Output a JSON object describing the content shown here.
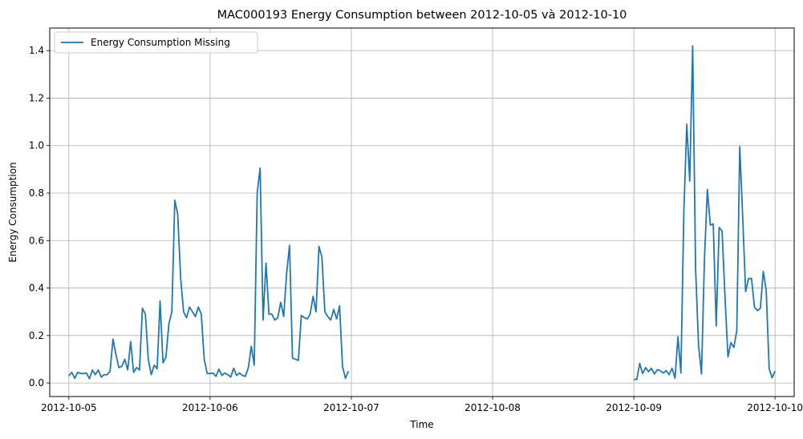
{
  "chart_data": {
    "type": "line",
    "title": "MAC000193 Energy Consumption between 2012-10-05 và 2012-10-10",
    "xlabel": "Time",
    "ylabel": "Energy Consumption",
    "xlim": [
      "2012-10-04 20:45",
      "2012-10-10 03:15"
    ],
    "ylim": [
      -0.057,
      1.495
    ],
    "grid": true,
    "legend": "top-left",
    "x_ticks": [
      "2012-10-05",
      "2012-10-06",
      "2012-10-07",
      "2012-10-08",
      "2012-10-09",
      "2012-10-10"
    ],
    "y_ticks": [
      "0.0",
      "0.2",
      "0.4",
      "0.6",
      "0.8",
      "1.0",
      "1.2",
      "1.4"
    ],
    "y_tick_values": [
      0.0,
      0.2,
      0.4,
      0.6,
      0.8,
      1.0,
      1.2,
      1.4
    ],
    "series": [
      {
        "name": "Energy Consumption Missing",
        "color": "#1f77b4",
        "segments": [
          {
            "start": "2012-10-05 00:00",
            "interval_minutes": 30,
            "values": [
              0.03,
              0.045,
              0.02,
              0.045,
              0.04,
              0.04,
              0.042,
              0.018,
              0.055,
              0.035,
              0.055,
              0.025,
              0.035,
              0.035,
              0.05,
              0.185,
              0.12,
              0.065,
              0.07,
              0.1,
              0.055,
              0.175,
              0.045,
              0.065,
              0.055,
              0.315,
              0.29,
              0.1,
              0.035,
              0.075,
              0.06,
              0.345,
              0.085,
              0.11,
              0.25,
              0.3,
              0.77,
              0.71,
              0.44,
              0.3,
              0.275,
              0.32,
              0.3,
              0.28,
              0.32,
              0.29,
              0.1,
              0.04,
              0.04,
              0.042,
              0.028,
              0.058,
              0.032,
              0.042,
              0.035,
              0.025,
              0.062,
              0.032,
              0.042,
              0.032,
              0.028,
              0.065,
              0.155,
              0.075,
              0.8,
              0.905,
              0.265,
              0.505,
              0.29,
              0.29,
              0.265,
              0.275,
              0.34,
              0.28,
              0.46,
              0.58,
              0.105,
              0.1,
              0.095,
              0.285,
              0.275,
              0.27,
              0.29,
              0.365,
              0.3,
              0.575,
              0.53,
              0.3,
              0.28,
              0.265,
              0.31,
              0.27,
              0.325,
              0.07,
              0.02,
              0.05
            ]
          },
          {
            "start": "2012-10-09 00:00",
            "interval_minutes": 30,
            "values": [
              0.015,
              0.015,
              0.082,
              0.04,
              0.065,
              0.048,
              0.062,
              0.038,
              0.056,
              0.052,
              0.042,
              0.052,
              0.035,
              0.062,
              0.02,
              0.195,
              0.042,
              0.72,
              1.09,
              0.85,
              1.42,
              0.48,
              0.16,
              0.038,
              0.52,
              0.815,
              0.665,
              0.67,
              0.24,
              0.655,
              0.64,
              0.36,
              0.11,
              0.17,
              0.15,
              0.22,
              0.995,
              0.7,
              0.385,
              0.44,
              0.44,
              0.32,
              0.305,
              0.315,
              0.47,
              0.39,
              0.06,
              0.022,
              0.05
            ]
          }
        ]
      }
    ]
  }
}
